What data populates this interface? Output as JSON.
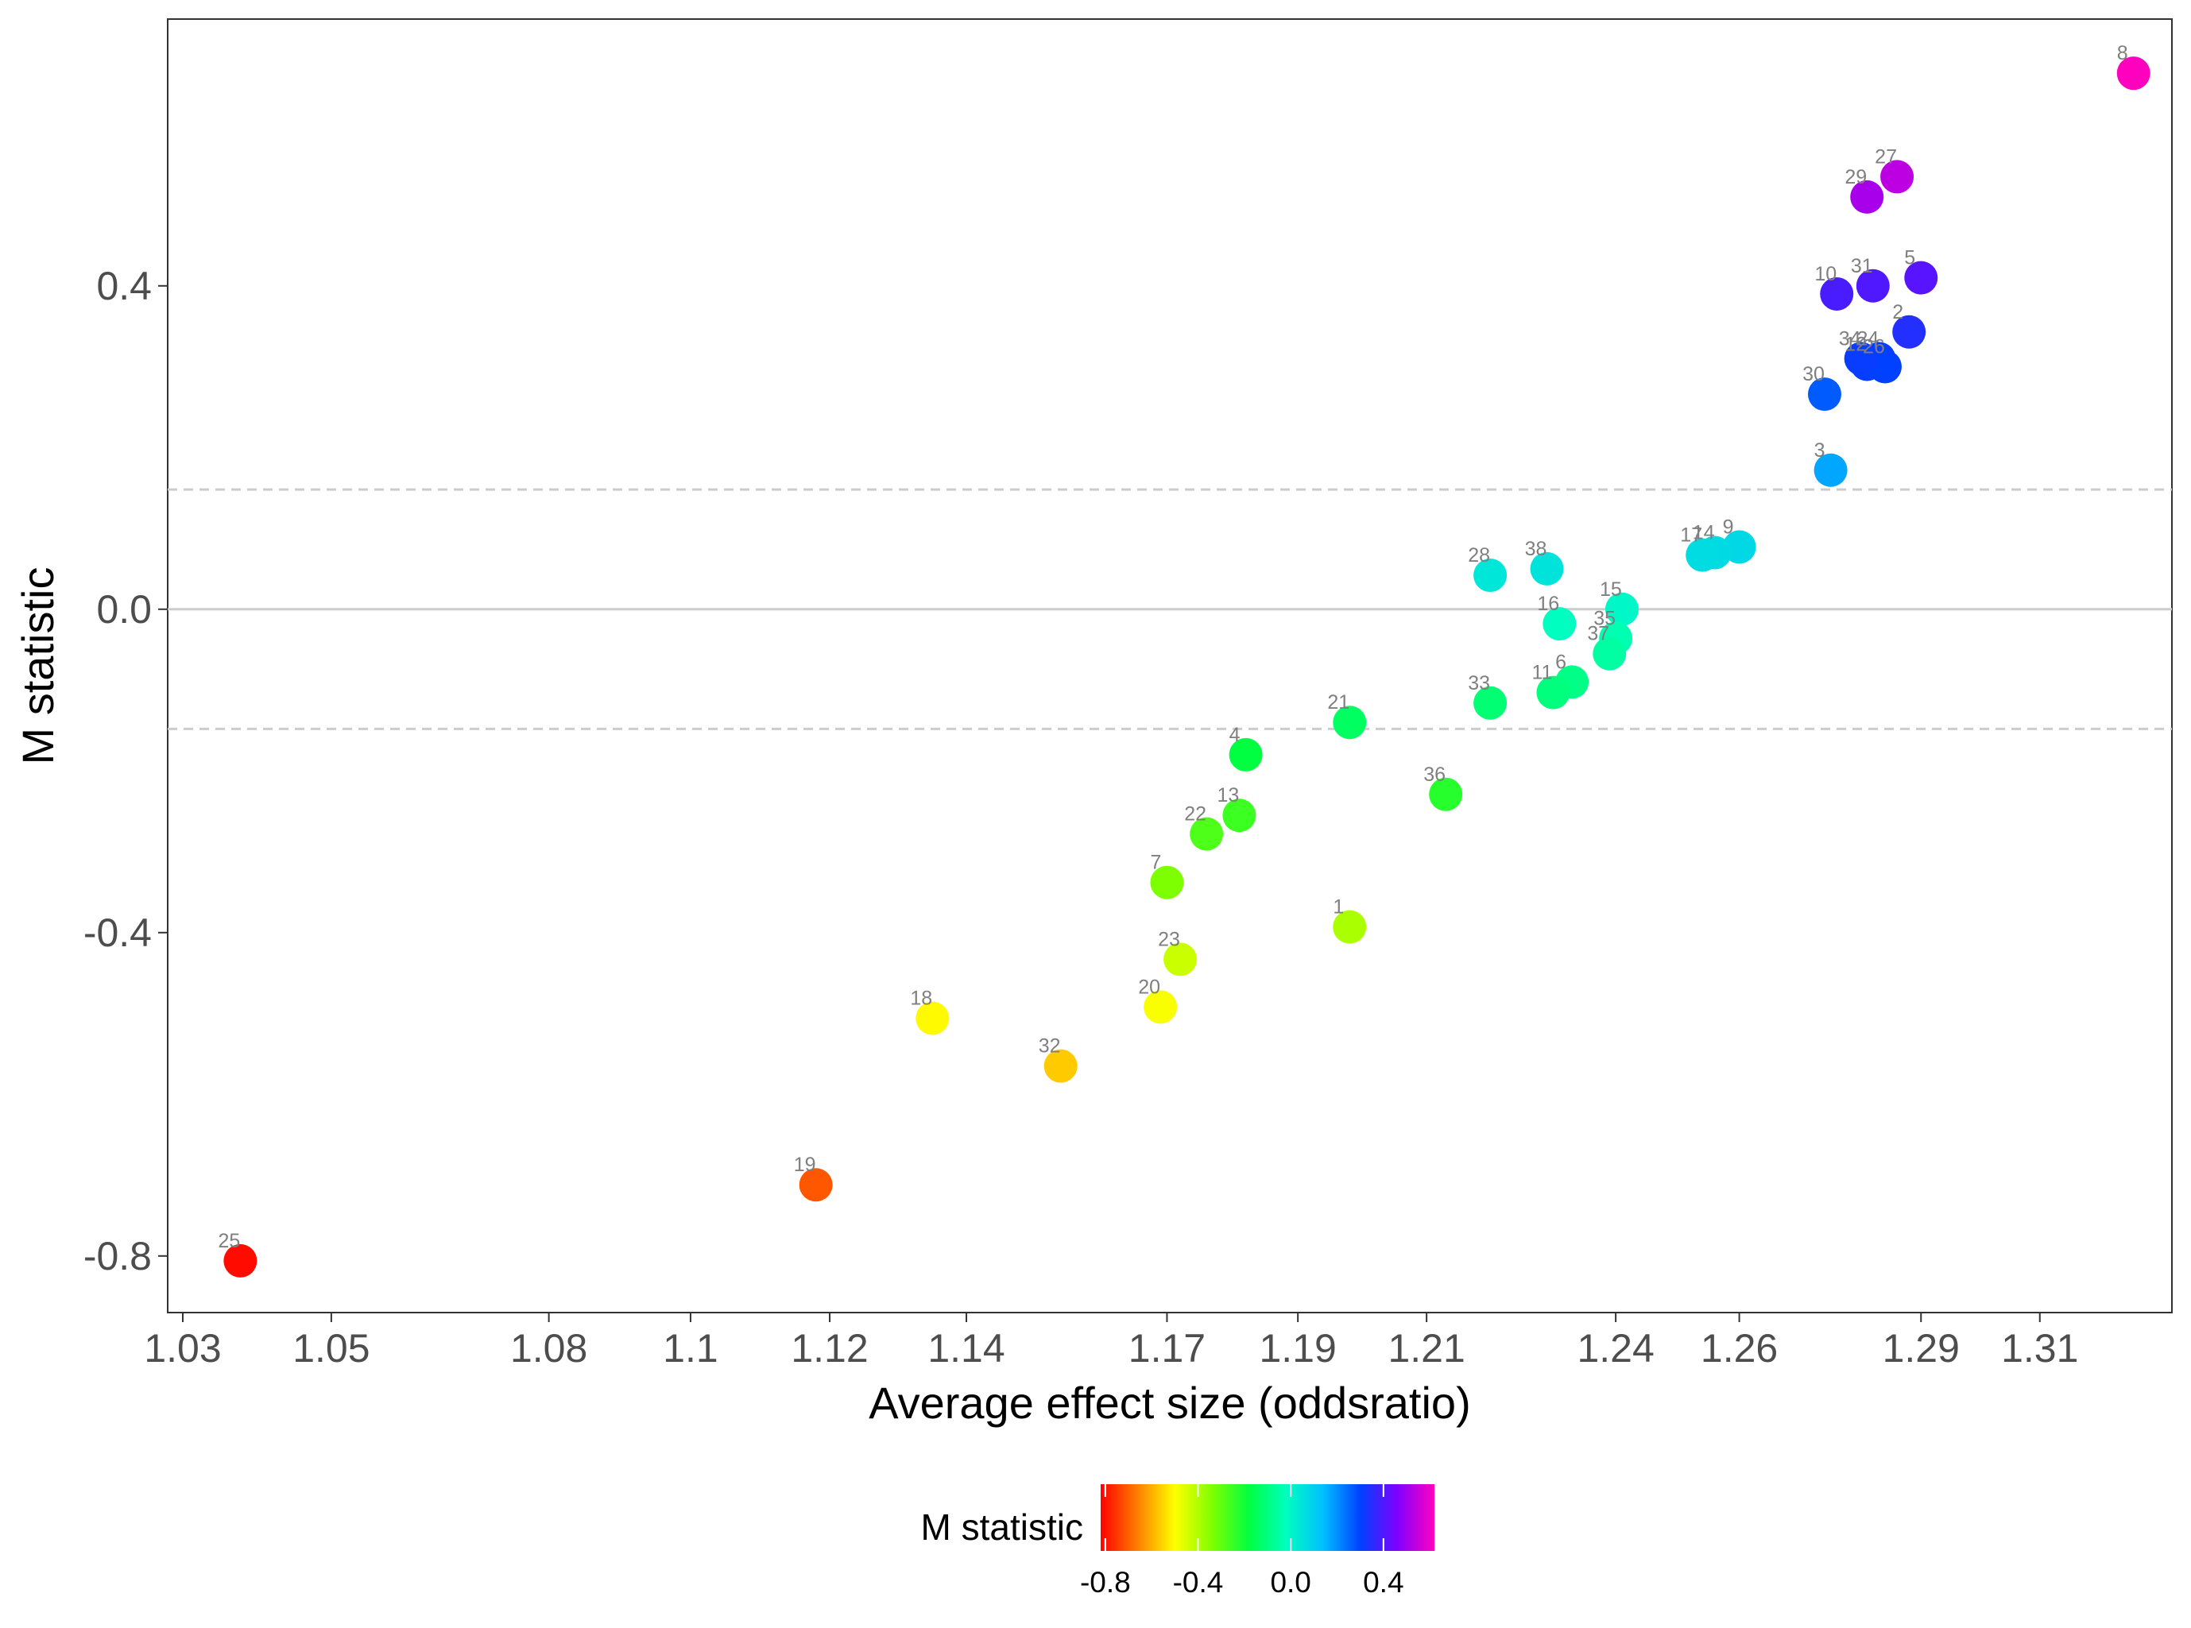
{
  "chart_data": {
    "type": "scatter",
    "xlabel": "Average effect size (oddsratio)",
    "ylabel": "M statistic",
    "x_scale": "log",
    "xlim": [
      1.03,
      1.33
    ],
    "ylim": [
      -0.87,
      0.73
    ],
    "x_ticks": [
      "1.03",
      "1.05",
      "1.08",
      "1.1",
      "1.12",
      "1.14",
      "1.17",
      "1.19",
      "1.21",
      "1.24",
      "1.26",
      "1.29",
      "1.31"
    ],
    "y_ticks": [
      "-0.8",
      "-0.4",
      "0.0",
      "0.4"
    ],
    "reference_lines": [
      {
        "y": 0.0,
        "style": "solid"
      },
      {
        "y": 0.148,
        "style": "dashed"
      },
      {
        "y": -0.148,
        "style": "dashed"
      }
    ],
    "grid": false,
    "legend": {
      "title": "M statistic",
      "placement": "bottom",
      "type": "colorbar",
      "ticks": [
        "-0.8",
        "-0.4",
        "0.0",
        "0.4"
      ],
      "range": [
        -0.82,
        0.62
      ],
      "palette": [
        "#ff0000",
        "#ff8000",
        "#ffff00",
        "#80ff00",
        "#00ff40",
        "#00ffbf",
        "#00bfff",
        "#0040ff",
        "#8000ff",
        "#ff00bf"
      ]
    },
    "points": [
      {
        "label": "1",
        "x": 1.198,
        "y": -0.393
      },
      {
        "label": "2",
        "x": 1.288,
        "y": 0.343
      },
      {
        "label": "3",
        "x": 1.275,
        "y": 0.172
      },
      {
        "label": "4",
        "x": 1.182,
        "y": -0.18
      },
      {
        "label": "5",
        "x": 1.29,
        "y": 0.41
      },
      {
        "label": "6",
        "x": 1.233,
        "y": -0.09
      },
      {
        "label": "7",
        "x": 1.17,
        "y": -0.338
      },
      {
        "label": "8",
        "x": 1.326,
        "y": 0.663
      },
      {
        "label": "9",
        "x": 1.26,
        "y": 0.077
      },
      {
        "label": "10",
        "x": 1.276,
        "y": 0.39
      },
      {
        "label": "11",
        "x": 1.23,
        "y": -0.103
      },
      {
        "label": "12",
        "x": 1.281,
        "y": 0.303
      },
      {
        "label": "13",
        "x": 1.181,
        "y": -0.255
      },
      {
        "label": "14",
        "x": 1.256,
        "y": 0.07
      },
      {
        "label": "15",
        "x": 1.241,
        "y": 0.0
      },
      {
        "label": "16",
        "x": 1.231,
        "y": -0.018
      },
      {
        "label": "17",
        "x": 1.254,
        "y": 0.067
      },
      {
        "label": "18",
        "x": 1.135,
        "y": -0.506
      },
      {
        "label": "19",
        "x": 1.118,
        "y": -0.712
      },
      {
        "label": "20",
        "x": 1.169,
        "y": -0.492
      },
      {
        "label": "21",
        "x": 1.198,
        "y": -0.14
      },
      {
        "label": "22",
        "x": 1.176,
        "y": -0.278
      },
      {
        "label": "23",
        "x": 1.172,
        "y": -0.433
      },
      {
        "label": "24",
        "x": 1.283,
        "y": 0.31
      },
      {
        "label": "25",
        "x": 1.0377,
        "y": -0.806
      },
      {
        "label": "26",
        "x": 1.284,
        "y": 0.3
      },
      {
        "label": "27",
        "x": 1.286,
        "y": 0.535
      },
      {
        "label": "28",
        "x": 1.22,
        "y": 0.042
      },
      {
        "label": "29",
        "x": 1.281,
        "y": 0.51
      },
      {
        "label": "30",
        "x": 1.274,
        "y": 0.266
      },
      {
        "label": "31",
        "x": 1.282,
        "y": 0.4
      },
      {
        "label": "32",
        "x": 1.154,
        "y": -0.565
      },
      {
        "label": "33",
        "x": 1.22,
        "y": -0.116
      },
      {
        "label": "34",
        "x": 1.28,
        "y": 0.31
      },
      {
        "label": "35",
        "x": 1.24,
        "y": -0.036
      },
      {
        "label": "36",
        "x": 1.213,
        "y": -0.229
      },
      {
        "label": "37",
        "x": 1.239,
        "y": -0.055
      },
      {
        "label": "38",
        "x": 1.229,
        "y": 0.05
      }
    ]
  }
}
